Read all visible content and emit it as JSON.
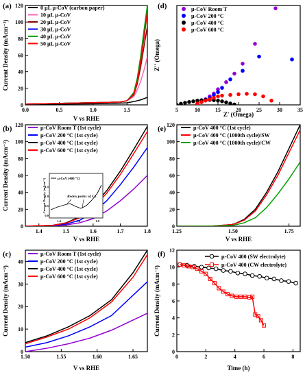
{
  "chart_data": [
    {
      "id": "a",
      "panel_label": "(a)",
      "type": "line",
      "xlabel": "V vs RHE",
      "ylabel": "Current Density (mAcm⁻²)",
      "xlim": [
        0.0,
        1.8
      ],
      "ylim": [
        0,
        120
      ],
      "xticks": [
        "0.0",
        "0.5",
        "1.0",
        "1.5"
      ],
      "xtick_values": [
        0.0,
        0.5,
        1.0,
        1.5
      ],
      "yticks": [
        "0",
        "20",
        "40",
        "60",
        "80",
        "100",
        "120"
      ],
      "ytick_values": [
        0,
        20,
        40,
        60,
        80,
        100,
        120
      ],
      "legend_position": "top-left",
      "series": [
        {
          "name": "0 µL µ-CoV (carbon paper)",
          "color": "#000000",
          "x": [
            0,
            0.3,
            0.6,
            0.9,
            1.2,
            1.5,
            1.6,
            1.7,
            1.8
          ],
          "y": [
            0.5,
            0.8,
            1,
            1.2,
            1.5,
            2.5,
            4,
            6,
            9
          ]
        },
        {
          "name": "10 µL µ-CoV",
          "color": "#ff69b4",
          "x": [
            0,
            0.3,
            0.6,
            0.9,
            1.2,
            1.4,
            1.5,
            1.6,
            1.65,
            1.7,
            1.75,
            1.8
          ],
          "y": [
            1,
            1.5,
            2,
            2.5,
            3,
            3.5,
            5,
            10,
            18,
            28,
            42,
            58
          ]
        },
        {
          "name": "20 µL µ-CoV",
          "color": "#8b0000",
          "x": [
            0,
            0.3,
            0.6,
            0.9,
            1.2,
            1.4,
            1.5,
            1.6,
            1.65,
            1.7,
            1.75,
            1.8
          ],
          "y": [
            1,
            1.5,
            2,
            2.5,
            3,
            3.5,
            5,
            12,
            25,
            45,
            70,
            95
          ]
        },
        {
          "name": "30 µL µ-CoV",
          "color": "#0000ff",
          "x": [
            0,
            0.3,
            0.6,
            0.9,
            1.2,
            1.4,
            1.5,
            1.6,
            1.65,
            1.7,
            1.75,
            1.8
          ],
          "y": [
            1,
            1.5,
            2,
            2.5,
            3,
            3.5,
            5,
            14,
            30,
            55,
            85,
            118
          ]
        },
        {
          "name": "40 µL µ-CoV",
          "color": "#00a000",
          "x": [
            0,
            0.3,
            0.6,
            0.9,
            1.2,
            1.4,
            1.5,
            1.6,
            1.65,
            1.7,
            1.75,
            1.8
          ],
          "y": [
            1,
            1.5,
            2,
            2.5,
            3,
            3.5,
            5,
            15,
            32,
            58,
            90,
            120
          ]
        },
        {
          "name": "50 µL µ-CoV",
          "color": "#ff0000",
          "x": [
            0,
            0.3,
            0.6,
            0.9,
            1.2,
            1.4,
            1.5,
            1.6,
            1.65,
            1.7,
            1.75,
            1.8
          ],
          "y": [
            1,
            1.5,
            2,
            2.5,
            3,
            3.5,
            5,
            13,
            28,
            52,
            80,
            112
          ]
        }
      ]
    },
    {
      "id": "b",
      "panel_label": "(b)",
      "type": "line",
      "xlabel": "V vs RHE",
      "ylabel": "Current Density (mAcm⁻²)",
      "xlim": [
        1.35,
        1.8
      ],
      "ylim": [
        0,
        120
      ],
      "xticks": [
        "1.4",
        "1.5",
        "1.6",
        "1.7",
        "1.8"
      ],
      "xtick_values": [
        1.4,
        1.5,
        1.6,
        1.7,
        1.8
      ],
      "yticks": [
        "0",
        "20",
        "40",
        "60",
        "80",
        "100",
        "120"
      ],
      "ytick_values": [
        0,
        20,
        40,
        60,
        80,
        100,
        120
      ],
      "legend_position": "top-left",
      "series": [
        {
          "name": "µ-CoV Room T (1st cycle)",
          "color": "#9400d3",
          "x": [
            1.35,
            1.45,
            1.5,
            1.55,
            1.6,
            1.65,
            1.7,
            1.75,
            1.8
          ],
          "y": [
            0,
            0.5,
            1.5,
            4,
            9,
            18,
            30,
            44,
            60
          ]
        },
        {
          "name": "µ-CoV 200 °C (1st cycle)",
          "color": "#0000ff",
          "x": [
            1.35,
            1.45,
            1.5,
            1.55,
            1.6,
            1.65,
            1.7,
            1.75,
            1.8
          ],
          "y": [
            0,
            0.8,
            2.5,
            7,
            16,
            30,
            49,
            70,
            93
          ]
        },
        {
          "name": "µ-CoV 400 °C (1st cycle)",
          "color": "#000000",
          "x": [
            1.35,
            1.45,
            1.5,
            1.55,
            1.6,
            1.65,
            1.7,
            1.75,
            1.8
          ],
          "y": [
            0,
            1,
            4,
            11,
            24,
            42,
            65,
            91,
            118
          ]
        },
        {
          "name": "µ-CoV 600 °C (1st cycle)",
          "color": "#ff0000",
          "x": [
            1.35,
            1.45,
            1.5,
            1.55,
            1.6,
            1.65,
            1.7,
            1.75,
            1.8
          ],
          "y": [
            0,
            1,
            3.5,
            10,
            22,
            39,
            61,
            86,
            112
          ]
        }
      ],
      "inset": {
        "legend": "µ-CoV (400 °C)",
        "annotation": "Redox peaks of Co",
        "ylabel": "Current Density (mAcm⁻²)",
        "xticks": [
          "1.4",
          "1.6",
          "1.8"
        ],
        "yticks": [
          "0.0",
          "0.5",
          "1.0",
          "1.5"
        ]
      }
    },
    {
      "id": "c",
      "panel_label": "(c)",
      "type": "line",
      "xlabel": "V vs RHE",
      "ylabel": "Current Density (mAcm⁻²)",
      "xlim": [
        1.5,
        1.67
      ],
      "ylim": [
        0,
        45
      ],
      "xticks": [
        "1.50",
        "1.55",
        "1.60",
        "1.65"
      ],
      "xtick_values": [
        1.5,
        1.55,
        1.6,
        1.65
      ],
      "yticks": [
        "0",
        "10",
        "20",
        "30",
        "40"
      ],
      "ytick_values": [
        0,
        10,
        20,
        30,
        40
      ],
      "legend_position": "top-left",
      "series": [
        {
          "name": "µ-CoV Room T (1st cycle)",
          "color": "#9400d3",
          "x": [
            1.5,
            1.53,
            1.56,
            1.59,
            1.62,
            1.65,
            1.67
          ],
          "y": [
            0,
            1.5,
            3.5,
            6,
            9.5,
            14,
            17
          ]
        },
        {
          "name": "µ-CoV 200 °C (1st cycle)",
          "color": "#0000ff",
          "x": [
            1.5,
            1.53,
            1.56,
            1.59,
            1.62,
            1.65,
            1.67
          ],
          "y": [
            2,
            4,
            7,
            11,
            16,
            25,
            31
          ]
        },
        {
          "name": "µ-CoV 400 °C (1st cycle)",
          "color": "#000000",
          "x": [
            1.5,
            1.53,
            1.56,
            1.59,
            1.62,
            1.65,
            1.67
          ],
          "y": [
            4,
            7,
            11,
            16,
            23,
            35,
            45
          ]
        },
        {
          "name": "µ-CoV 600 °C (1st cycle)",
          "color": "#ff0000",
          "x": [
            1.5,
            1.53,
            1.56,
            1.59,
            1.62,
            1.65,
            1.67
          ],
          "y": [
            3.5,
            6.5,
            10,
            15,
            22,
            33,
            43
          ]
        }
      ]
    },
    {
      "id": "d",
      "panel_label": "(d)",
      "type": "scatter",
      "xlabel": "Z' (Omega)",
      "ylabel": "Z'' (Omega)",
      "xlim": [
        5,
        35
      ],
      "ylim": [
        0,
        70
      ],
      "xticks": [
        "5",
        "10",
        "15",
        "20",
        "25",
        "30",
        "35"
      ],
      "xtick_values": [
        5,
        10,
        15,
        20,
        25,
        30,
        35
      ],
      "yticks": [],
      "legend_position": "top-left",
      "series": [
        {
          "name": "µ-CoV Room T",
          "color": "#9400d3",
          "x": [
            10,
            11,
            12,
            13,
            14,
            15,
            17,
            19,
            21,
            24,
            29
          ],
          "y": [
            0.5,
            2,
            4,
            6,
            8,
            11,
            16,
            22,
            29,
            43,
            68
          ]
        },
        {
          "name": "µ-CoV 200 °C",
          "color": "#0000ff",
          "x": [
            10,
            11,
            12,
            13,
            14,
            15,
            16,
            18,
            21,
            25,
            33
          ],
          "y": [
            0.5,
            2,
            3.5,
            5,
            7,
            9,
            12,
            18,
            24,
            34,
            32
          ]
        },
        {
          "name": "µ-CoV 400 °C",
          "color": "#000000",
          "x": [
            5,
            6,
            7,
            8,
            9,
            10,
            11,
            12,
            13,
            14,
            15,
            16,
            17,
            18,
            19
          ],
          "y": [
            0,
            0.8,
            1.5,
            2,
            2.5,
            3,
            3.3,
            3.5,
            3.5,
            3.3,
            3,
            2.5,
            1.8,
            1,
            0.3
          ]
        },
        {
          "name": "µ-CoV 600 °C",
          "color": "#ff0000",
          "x": [
            10,
            11,
            12,
            13,
            14,
            15,
            16,
            18,
            20,
            22,
            24,
            26,
            28
          ],
          "y": [
            1,
            2,
            3,
            4,
            5,
            6,
            6.5,
            7,
            7.5,
            7.8,
            7.5,
            6,
            3
          ]
        }
      ]
    },
    {
      "id": "e",
      "panel_label": "(e)",
      "type": "line",
      "xlabel": "V vs RHE",
      "ylabel": "",
      "xlim": [
        1.25,
        1.8
      ],
      "ylim": [
        0,
        120
      ],
      "xticks": [
        "1.25",
        "1.50",
        "1.75"
      ],
      "xtick_values": [
        1.25,
        1.5,
        1.75
      ],
      "yticks": [
        "0",
        "20",
        "40",
        "60",
        "80",
        "100",
        "120"
      ],
      "ytick_values": [
        0,
        20,
        40,
        60,
        80,
        100,
        120
      ],
      "legend_position": "top-left",
      "series": [
        {
          "name": "µ-CoV 400 °C (1st cycle)",
          "color": "#000000",
          "x": [
            1.25,
            1.4,
            1.5,
            1.55,
            1.6,
            1.65,
            1.7,
            1.75,
            1.8
          ],
          "y": [
            0,
            0,
            2,
            8,
            20,
            40,
            64,
            92,
            120
          ]
        },
        {
          "name": "µ-CoV 400 °C (1000th cycle)/SW",
          "color": "#ff0000",
          "x": [
            1.25,
            1.4,
            1.5,
            1.55,
            1.6,
            1.65,
            1.7,
            1.75,
            1.8
          ],
          "y": [
            0,
            0,
            2,
            7,
            18,
            37,
            60,
            87,
            114
          ]
        },
        {
          "name": "µ-CoV 400 °C (1000th cycle)/CW",
          "color": "#00a000",
          "x": [
            1.25,
            1.4,
            1.5,
            1.55,
            1.6,
            1.65,
            1.7,
            1.75,
            1.8
          ],
          "y": [
            0,
            0,
            1,
            4,
            10,
            22,
            38,
            56,
            76
          ]
        }
      ]
    },
    {
      "id": "f",
      "panel_label": "(f)",
      "type": "line",
      "xlabel": "Time (h)",
      "ylabel": "Current Density (mAcm⁻²)",
      "xlim": [
        0,
        8.5
      ],
      "ylim": [
        0,
        12
      ],
      "xticks": [
        "0",
        "2",
        "4",
        "6",
        "8"
      ],
      "xtick_values": [
        0,
        2,
        4,
        6,
        8
      ],
      "yticks": [
        "0",
        "2",
        "4",
        "6",
        "8",
        "10",
        "12"
      ],
      "ytick_values": [
        0,
        2,
        4,
        6,
        8,
        10,
        12
      ],
      "legend_position": "top-right",
      "series": [
        {
          "name": "µ-CoV 400 (SW electrolyte)",
          "color": "#000000",
          "marker": "circle",
          "x": [
            0.2,
            0.7,
            1.2,
            1.7,
            2.2,
            2.7,
            3.2,
            3.7,
            4.2,
            4.7,
            5.2,
            5.7,
            6.2,
            6.7,
            7.2,
            7.7,
            8.2
          ],
          "y": [
            10.3,
            10.2,
            10.1,
            10,
            9.9,
            9.8,
            9.6,
            9.5,
            9.3,
            9.2,
            9.0,
            8.9,
            8.7,
            8.6,
            8.4,
            8.3,
            8.1
          ]
        },
        {
          "name": "µ-CoV 400 (CW electrolyte)",
          "color": "#ff0000",
          "marker": "square",
          "x": [
            0.2,
            0.5,
            0.8,
            1.1,
            1.4,
            1.7,
            2.0,
            2.3,
            2.6,
            2.9,
            3.2,
            3.5,
            3.8,
            4.1,
            4.4,
            4.7,
            5.0,
            5.2,
            5.4,
            5.6,
            5.8,
            6.0
          ],
          "y": [
            10.3,
            10.2,
            10.1,
            10,
            9.8,
            9.5,
            9.2,
            8.6,
            8.1,
            7.5,
            7.1,
            6.8,
            6.6,
            6.5,
            6.5,
            6.5,
            6.4,
            6.5,
            4.4,
            4.2,
            3.7,
            3.1
          ]
        }
      ]
    }
  ]
}
